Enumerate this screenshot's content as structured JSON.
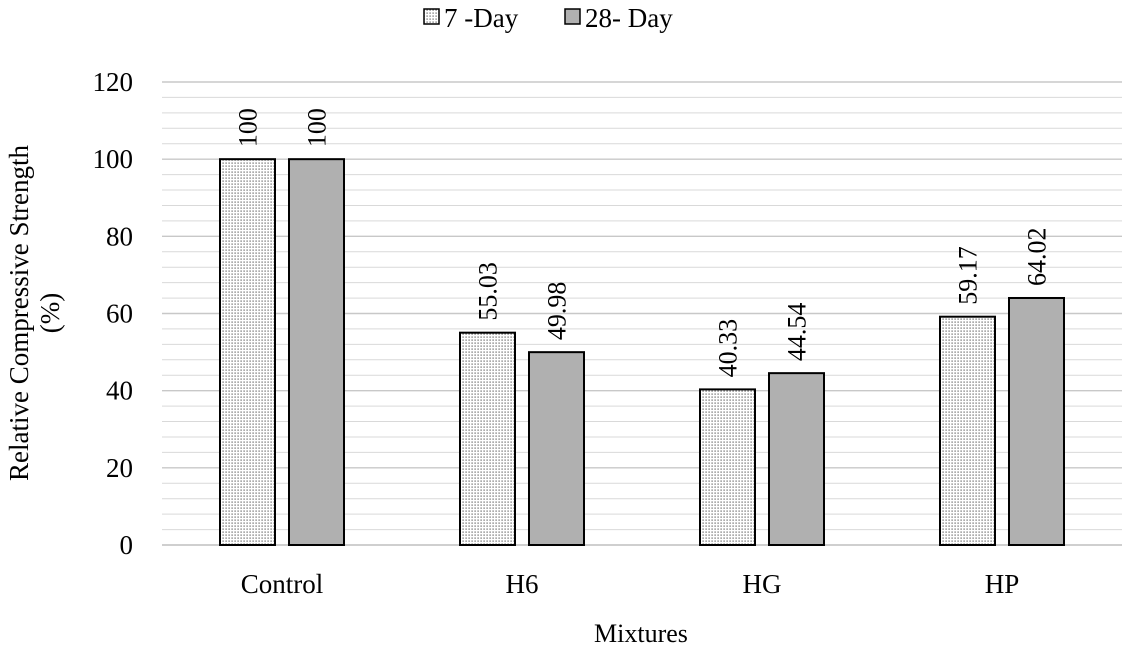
{
  "chart_data": {
    "type": "bar",
    "categories": [
      "Control",
      "H6",
      "HG",
      "HP"
    ],
    "series": [
      {
        "name": "7 -Day",
        "values": [
          100,
          55.03,
          40.33,
          59.17
        ],
        "labels": [
          "100",
          "55.03",
          "40.33",
          "59.17"
        ],
        "pattern": "dotted",
        "color": "#ffffff"
      },
      {
        "name": "28- Day",
        "values": [
          100,
          49.98,
          44.54,
          64.02
        ],
        "labels": [
          "100",
          "49.98",
          "44.54",
          "64.02"
        ],
        "pattern": "solid",
        "color": "#b0b0b0"
      }
    ],
    "xlabel": "Mixtures",
    "ylabel_lines": [
      "Relative Compressive Strength",
      "(%)"
    ],
    "ylim": [
      0,
      120
    ],
    "yticks": [
      0,
      20,
      40,
      60,
      80,
      100,
      120
    ],
    "ytick_labels": [
      "0",
      "20",
      "40",
      "60",
      "80",
      "100",
      "120"
    ],
    "minor_grid_step": 4,
    "grid": true,
    "legend_position": "top-center",
    "colors": {
      "grid": "#d9d9d9",
      "bar_outline": "#000000",
      "axis": "#bfbfbf",
      "dot": "#555555"
    }
  }
}
